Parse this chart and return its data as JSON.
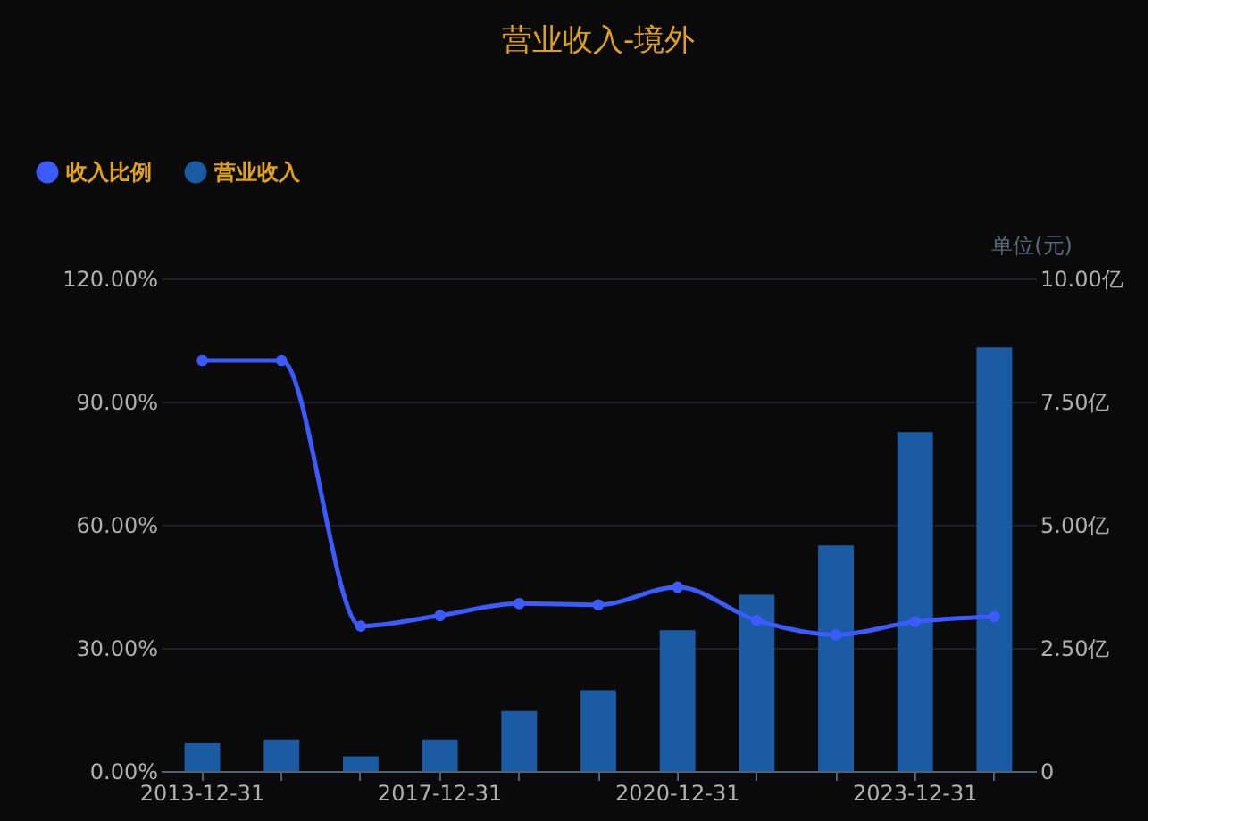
{
  "chart_data": {
    "type": "bar",
    "title": "营业收入-境外",
    "y2label": "单位(元)",
    "categories": [
      "2013-12-31",
      null,
      null,
      "2017-12-31",
      null,
      null,
      "2020-12-31",
      null,
      null,
      "2023-12-31",
      null
    ],
    "series": [
      {
        "name": "收入比例",
        "type": "line",
        "axis": "y",
        "color": "#3b5bff",
        "marker": "circle",
        "values": [
          100,
          100,
          35.3,
          37.9,
          40.8,
          40.5,
          44.8,
          36.7,
          33.2,
          36.4,
          37.6
        ]
      },
      {
        "name": "营业收入",
        "axis": "y2",
        "color": "#1a5ba3",
        "values": [
          0.56,
          0.64,
          0.3,
          0.64,
          1.22,
          1.64,
          2.86,
          3.58,
          4.58,
          6.88,
          8.6
        ]
      }
    ],
    "ylim": [
      0,
      120
    ],
    "yticks": [
      {
        "value": 0,
        "label": "0.00%"
      },
      {
        "value": 30,
        "label": "30.00%"
      },
      {
        "value": 60,
        "label": "60.00%"
      },
      {
        "value": 90,
        "label": "90.00%"
      },
      {
        "value": 120,
        "label": "120.00%"
      }
    ],
    "y2lim": [
      0,
      10
    ],
    "y2ticks": [
      0,
      {
        "value": 2.5,
        "label": "2.50亿"
      },
      {
        "value": 5,
        "label": "5.00亿"
      },
      {
        "value": 7.5,
        "label": "7.50亿"
      },
      {
        "value": 10,
        "label": "10.00亿"
      }
    ],
    "grid": "y",
    "legend": "top left"
  }
}
